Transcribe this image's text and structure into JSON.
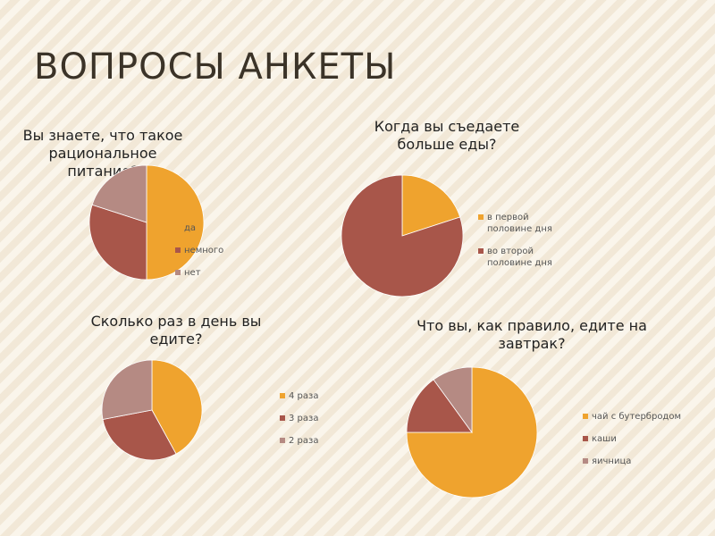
{
  "slide": {
    "title": "ВОПРОСЫ АНКЕТЫ"
  },
  "colors": {
    "orange": "#efa32e",
    "brown": "#a8564a",
    "mauve": "#b58a83",
    "bg": "#f7f0e1"
  },
  "chart_data": [
    {
      "type": "pie",
      "title": "Вы знаете, что такое рациональное питание?",
      "categories": [
        "да",
        "немного",
        "нет"
      ],
      "values": [
        50,
        30,
        20
      ],
      "colors": [
        "#efa32e",
        "#a8564a",
        "#b58a83"
      ],
      "legend": "right"
    },
    {
      "type": "pie",
      "title": "Когда вы съедаете больше еды?",
      "categories": [
        "в первой половине дня",
        "во второй половине дня"
      ],
      "values": [
        20,
        80
      ],
      "colors": [
        "#efa32e",
        "#a8564a"
      ],
      "legend": "right"
    },
    {
      "type": "pie",
      "title": "Сколько раз в день вы едите?",
      "categories": [
        "4 раза",
        "3 раза",
        "2 раза"
      ],
      "values": [
        42,
        30,
        28
      ],
      "colors": [
        "#efa32e",
        "#a8564a",
        "#b58a83"
      ],
      "legend": "right"
    },
    {
      "type": "pie",
      "title": "Что вы, как правило, едите на завтрак?",
      "categories": [
        "чай с бутербродом",
        "каши",
        "яичница"
      ],
      "values": [
        75,
        15,
        10
      ],
      "colors": [
        "#efa32e",
        "#a8564a",
        "#b58a83"
      ],
      "legend": "right"
    }
  ]
}
